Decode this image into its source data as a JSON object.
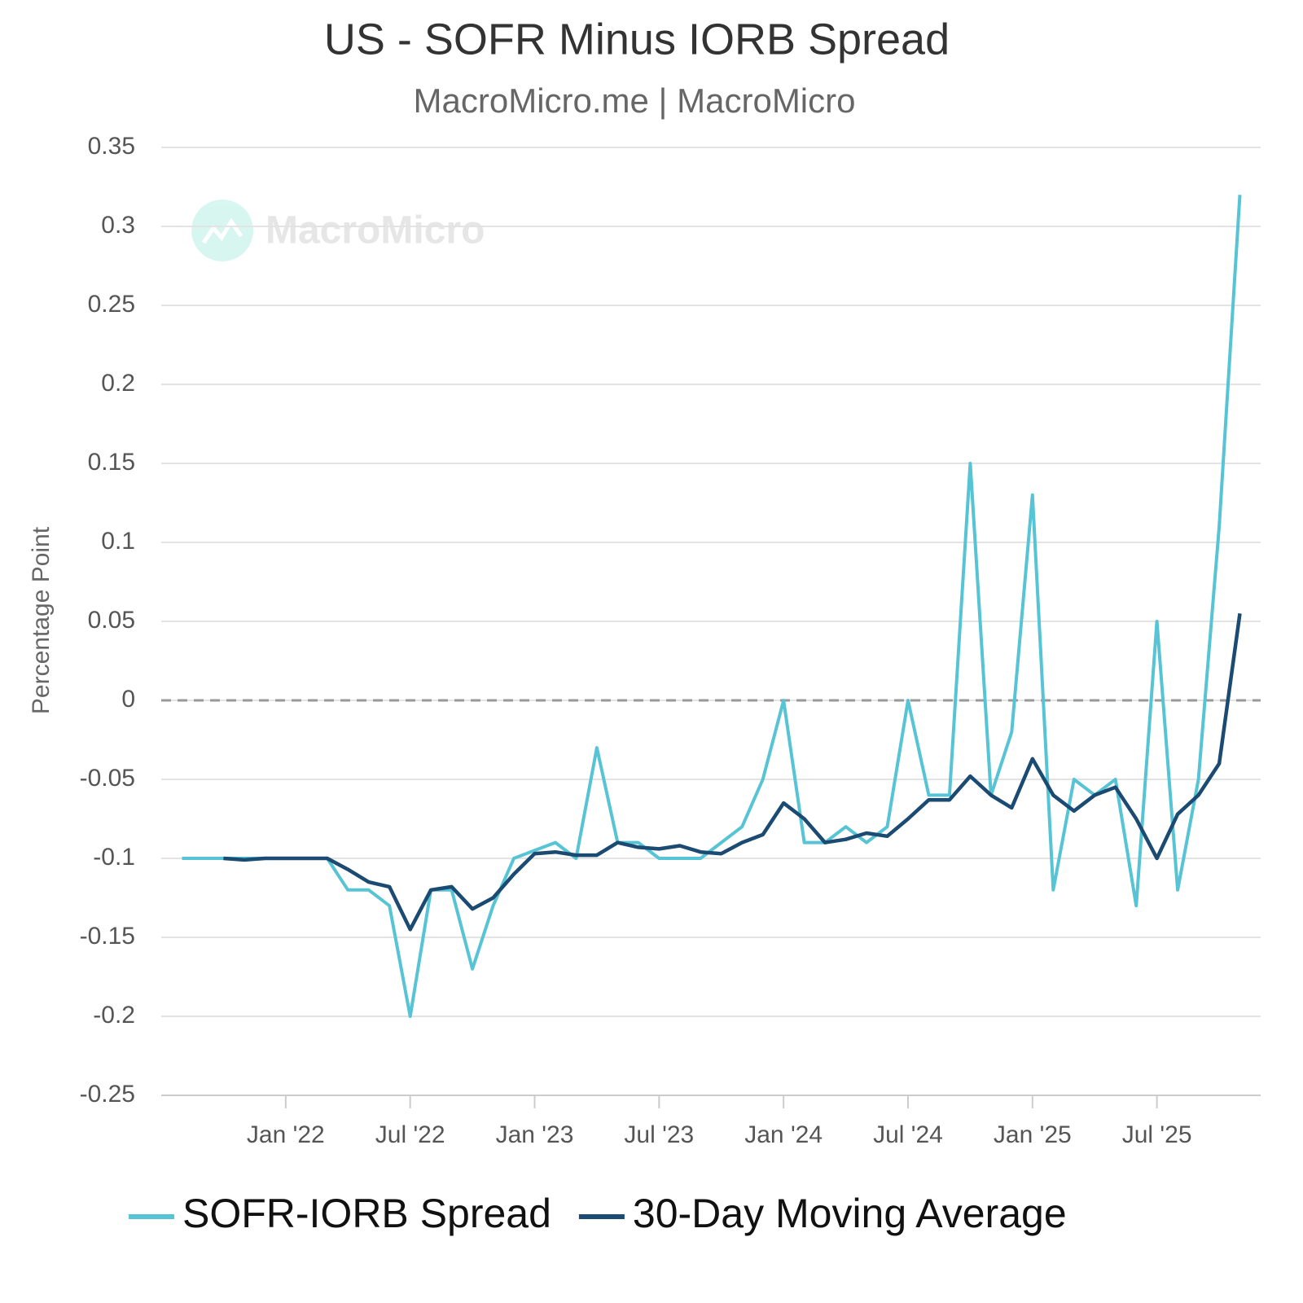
{
  "chart_data": {
    "type": "line",
    "title": "US - SOFR Minus IORB Spread",
    "subtitle": "MacroMicro.me | MacroMicro",
    "watermark": "MacroMicro",
    "y_label": "Percentage Point",
    "x": [
      "2021-08",
      "2021-09",
      "2021-10",
      "2021-11",
      "2021-12",
      "2022-01",
      "2022-02",
      "2022-03",
      "2022-04",
      "2022-05",
      "2022-06",
      "2022-07",
      "2022-08",
      "2022-09",
      "2022-10",
      "2022-11",
      "2022-12",
      "2023-01",
      "2023-02",
      "2023-03",
      "2023-04",
      "2023-05",
      "2023-06",
      "2023-07",
      "2023-08",
      "2023-09",
      "2023-10",
      "2023-11",
      "2023-12",
      "2024-01",
      "2024-02",
      "2024-03",
      "2024-04",
      "2024-05",
      "2024-06",
      "2024-07",
      "2024-08",
      "2024-09",
      "2024-10",
      "2024-11",
      "2024-12",
      "2025-01",
      "2025-02",
      "2025-03",
      "2025-04",
      "2025-05",
      "2025-06",
      "2025-07",
      "2025-08",
      "2025-09",
      "2025-10",
      "2025-11"
    ],
    "series": [
      {
        "name": "SOFR-IORB Spread",
        "color": "#56c4d4",
        "values": [
          -0.1,
          -0.1,
          -0.1,
          -0.1,
          -0.1,
          -0.1,
          -0.1,
          -0.1,
          -0.12,
          -0.12,
          -0.13,
          -0.2,
          -0.12,
          -0.12,
          -0.17,
          -0.13,
          -0.1,
          -0.095,
          -0.09,
          -0.1,
          -0.03,
          -0.09,
          -0.09,
          -0.1,
          -0.1,
          -0.1,
          -0.09,
          -0.08,
          -0.05,
          0,
          -0.09,
          -0.09,
          -0.08,
          -0.09,
          -0.08,
          0,
          -0.06,
          -0.06,
          0.15,
          -0.06,
          -0.02,
          0.13,
          -0.12,
          -0.05,
          -0.06,
          -0.05,
          -0.13,
          0.05,
          -0.12,
          -0.05,
          0.11,
          0.32
        ]
      },
      {
        "name": "30-Day Moving Average",
        "color": "#1b4a72",
        "values": [
          null,
          null,
          -0.1,
          -0.101,
          -0.1,
          -0.1,
          -0.1,
          -0.1,
          -0.107,
          -0.115,
          -0.118,
          -0.145,
          -0.12,
          -0.118,
          -0.132,
          -0.125,
          -0.11,
          -0.097,
          -0.096,
          -0.098,
          -0.098,
          -0.09,
          -0.093,
          -0.094,
          -0.092,
          -0.096,
          -0.097,
          -0.09,
          -0.085,
          -0.065,
          -0.075,
          -0.09,
          -0.088,
          -0.084,
          -0.086,
          -0.075,
          -0.063,
          -0.063,
          -0.048,
          -0.06,
          -0.068,
          -0.037,
          -0.06,
          -0.07,
          -0.06,
          -0.055,
          -0.075,
          -0.1,
          -0.072,
          -0.06,
          -0.04,
          0.055
        ]
      }
    ],
    "xlim": [
      "2021-07",
      "2025-12"
    ],
    "xticks": [
      {
        "value": "2022-01",
        "label": "Jan '22"
      },
      {
        "value": "2022-07",
        "label": "Jul '22"
      },
      {
        "value": "2023-01",
        "label": "Jan '23"
      },
      {
        "value": "2023-07",
        "label": "Jul '23"
      },
      {
        "value": "2024-01",
        "label": "Jan '24"
      },
      {
        "value": "2024-07",
        "label": "Jul '24"
      },
      {
        "value": "2025-01",
        "label": "Jan '25"
      },
      {
        "value": "2025-07",
        "label": "Jul '25"
      }
    ],
    "ylim": [
      -0.25,
      0.35
    ],
    "yticks": [
      0.35,
      0.3,
      0.25,
      0.2,
      0.15,
      0.1,
      0.05,
      0,
      -0.05,
      -0.1,
      -0.15,
      -0.2,
      -0.25
    ],
    "zero_line": true,
    "grid": true,
    "legend": "bottom"
  }
}
